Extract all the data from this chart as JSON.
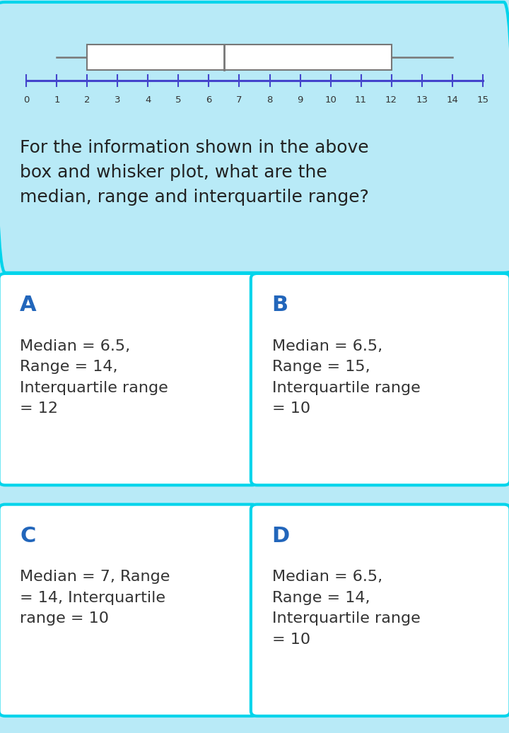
{
  "bg_color": "#b8eaf7",
  "top_panel_bg": "#ffffff",
  "box_plot": {
    "min": 1,
    "q1": 2,
    "median": 6.5,
    "q3": 12,
    "max": 14,
    "axis_min": 0,
    "axis_max": 15,
    "ticks": [
      0,
      1,
      2,
      3,
      4,
      5,
      6,
      7,
      8,
      9,
      10,
      11,
      12,
      13,
      14,
      15
    ],
    "box_color": "#ffffff",
    "box_edge_color": "#777777",
    "whisker_color": "#777777",
    "axis_line_color": "#4444cc"
  },
  "question_text": "For the information shown in the above\nbox and whisker plot, what are the\nmedian, range and interquartile range?",
  "question_text_color": "#222222",
  "option_border_color": "#00d4eb",
  "option_label_color": "#2266bb",
  "option_text_color": "#333333",
  "options": [
    {
      "label": "A",
      "text": "Median = 6.5,\nRange = 14,\nInterquartile range\n= 12"
    },
    {
      "label": "B",
      "text": "Median = 6.5,\nRange = 15,\nInterquartile range\n= 10"
    },
    {
      "label": "C",
      "text": "Median = 7, Range\n= 14, Interquartile\nrange = 10"
    },
    {
      "label": "D",
      "text": "Median = 6.5,\nRange = 14,\nInterquartile range\n= 10"
    }
  ]
}
